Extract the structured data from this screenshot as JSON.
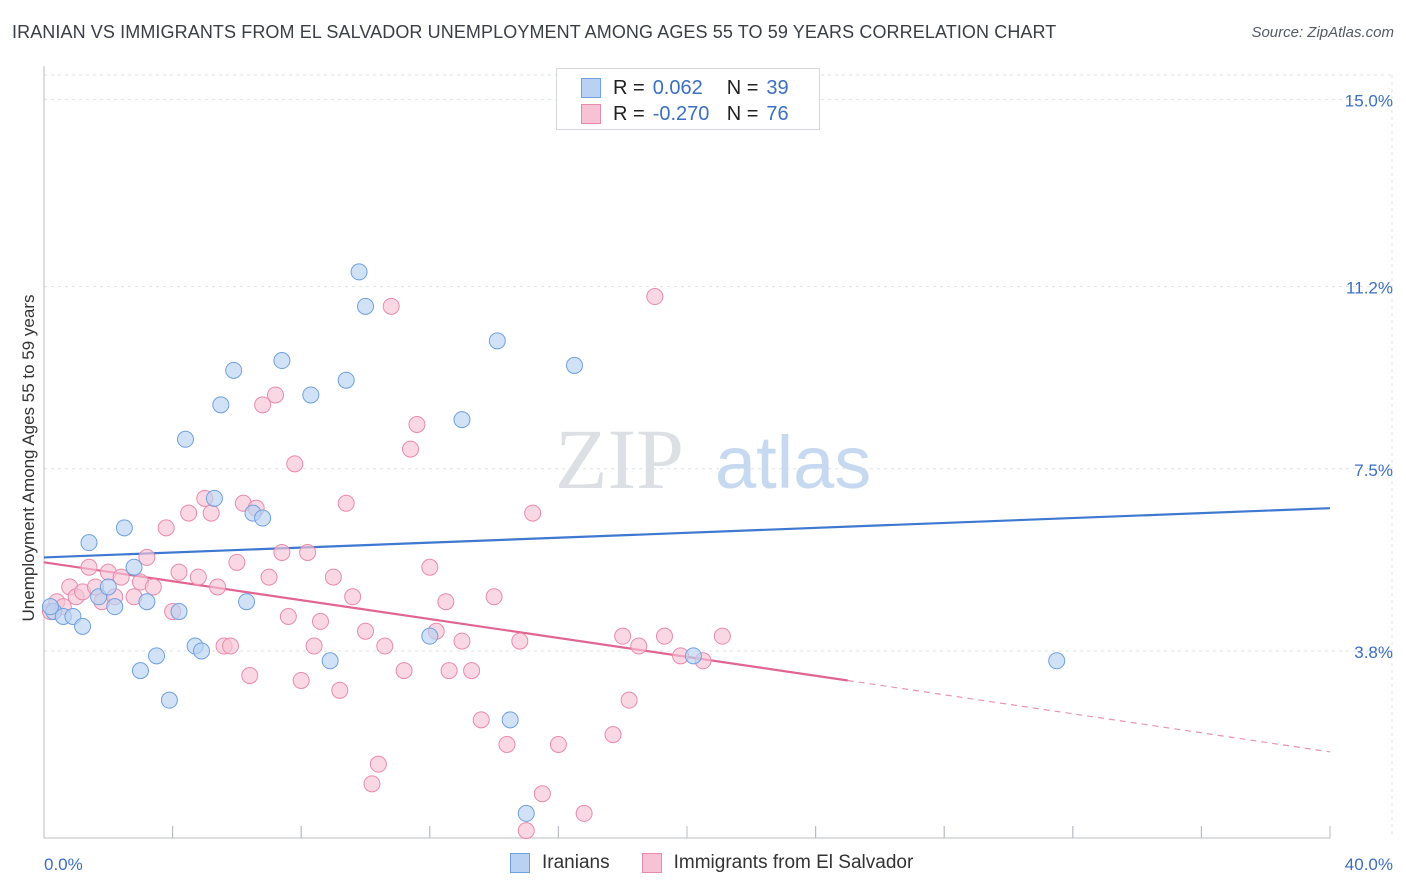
{
  "title": "IRANIAN VS IMMIGRANTS FROM EL SALVADOR UNEMPLOYMENT AMONG AGES 55 TO 59 YEARS CORRELATION CHART",
  "source": "Source: ZipAtlas.com",
  "watermark": {
    "zip": "ZIP",
    "atlas": "atlas"
  },
  "legend": {
    "rows": [
      {
        "r_label": "R =",
        "r_value": "0.062",
        "n_label": "N =",
        "n_value": "39",
        "color": "#6fa0e0",
        "fill": "#b9d2f3"
      },
      {
        "r_label": "R =",
        "r_value": "-0.270",
        "n_label": "N =",
        "n_value": "76",
        "color": "#ea8aab",
        "fill": "#f7c3d4"
      }
    ]
  },
  "bottom_legend": {
    "series1": "Iranians",
    "series2": "Immigrants from El Salvador"
  },
  "chart_data": {
    "type": "scatter",
    "title": "IRANIAN VS IMMIGRANTS FROM EL SALVADOR UNEMPLOYMENT AMONG AGES 55 TO 59 YEARS CORRELATION CHART",
    "xlabel": "",
    "ylabel": "Unemployment Among Ages 55 to 59 years",
    "xlim": [
      0,
      40
    ],
    "ylim": [
      0,
      15.5
    ],
    "x_tick_labels": [
      "0.0%",
      "40.0%"
    ],
    "y_ticks": [
      3.8,
      7.5,
      11.2,
      15.0
    ],
    "y_tick_labels": [
      "3.8%",
      "7.5%",
      "11.2%",
      "15.0%"
    ],
    "series": [
      {
        "name": "Iranians",
        "color": "#3e78d0",
        "fill": "#b9d2f3",
        "stroke": "#6fa0e0",
        "trend": {
          "x0": 0,
          "y0": 5.7,
          "x1": 40,
          "y1": 6.7
        },
        "points": [
          [
            0.3,
            4.6
          ],
          [
            0.6,
            4.5
          ],
          [
            0.9,
            4.5
          ],
          [
            1.2,
            4.3
          ],
          [
            1.4,
            6.0
          ],
          [
            1.7,
            4.9
          ],
          [
            2.2,
            4.7
          ],
          [
            2.5,
            6.3
          ],
          [
            2.8,
            5.5
          ],
          [
            3.0,
            3.4
          ],
          [
            3.2,
            4.8
          ],
          [
            3.5,
            3.7
          ],
          [
            3.9,
            2.8
          ],
          [
            4.2,
            4.6
          ],
          [
            4.7,
            3.9
          ],
          [
            4.9,
            3.8
          ],
          [
            4.4,
            8.1
          ],
          [
            5.3,
            6.9
          ],
          [
            5.5,
            8.8
          ],
          [
            5.9,
            9.5
          ],
          [
            6.5,
            6.6
          ],
          [
            6.8,
            6.5
          ],
          [
            6.3,
            4.8
          ],
          [
            7.4,
            9.7
          ],
          [
            8.3,
            9.0
          ],
          [
            8.9,
            3.6
          ],
          [
            9.4,
            9.3
          ],
          [
            9.8,
            11.5
          ],
          [
            10.0,
            10.8
          ],
          [
            12.0,
            4.1
          ],
          [
            13.0,
            8.5
          ],
          [
            14.1,
            10.1
          ],
          [
            14.5,
            2.4
          ],
          [
            15.0,
            0.5
          ],
          [
            16.5,
            9.6
          ],
          [
            20.2,
            3.7
          ],
          [
            31.5,
            3.6
          ],
          [
            0.2,
            4.7
          ],
          [
            2.0,
            5.1
          ]
        ]
      },
      {
        "name": "Immigrants from El Salvador",
        "color": "#e06592",
        "fill": "#f7c3d4",
        "stroke": "#ea8aab",
        "trend": {
          "x0": 0,
          "y0": 5.6,
          "x1": 25,
          "y1": 3.2,
          "dash_to_x": 40,
          "dash_to_y": 1.75
        },
        "points": [
          [
            0.2,
            4.6
          ],
          [
            0.4,
            4.8
          ],
          [
            0.6,
            4.7
          ],
          [
            0.8,
            5.1
          ],
          [
            1.0,
            4.9
          ],
          [
            1.2,
            5.0
          ],
          [
            1.4,
            5.5
          ],
          [
            1.6,
            5.1
          ],
          [
            1.8,
            4.8
          ],
          [
            2.0,
            5.4
          ],
          [
            2.2,
            4.9
          ],
          [
            2.4,
            5.3
          ],
          [
            2.8,
            4.9
          ],
          [
            3.0,
            5.2
          ],
          [
            3.2,
            5.7
          ],
          [
            3.4,
            5.1
          ],
          [
            3.8,
            6.3
          ],
          [
            4.0,
            4.6
          ],
          [
            4.2,
            5.4
          ],
          [
            4.5,
            6.6
          ],
          [
            4.8,
            5.3
          ],
          [
            5.0,
            6.9
          ],
          [
            5.2,
            6.6
          ],
          [
            5.4,
            5.1
          ],
          [
            5.6,
            3.9
          ],
          [
            5.8,
            3.9
          ],
          [
            6.0,
            5.6
          ],
          [
            6.2,
            6.8
          ],
          [
            6.4,
            3.3
          ],
          [
            6.6,
            6.7
          ],
          [
            6.8,
            8.8
          ],
          [
            7.2,
            9.0
          ],
          [
            7.0,
            5.3
          ],
          [
            7.4,
            5.8
          ],
          [
            7.6,
            4.5
          ],
          [
            7.8,
            7.6
          ],
          [
            8.0,
            3.2
          ],
          [
            8.2,
            5.8
          ],
          [
            8.4,
            3.9
          ],
          [
            8.6,
            4.4
          ],
          [
            9.0,
            5.3
          ],
          [
            9.2,
            3.0
          ],
          [
            9.4,
            6.8
          ],
          [
            9.6,
            4.9
          ],
          [
            10.0,
            4.2
          ],
          [
            10.2,
            1.1
          ],
          [
            10.4,
            1.5
          ],
          [
            10.6,
            3.9
          ],
          [
            10.8,
            10.8
          ],
          [
            11.2,
            3.4
          ],
          [
            11.4,
            7.9
          ],
          [
            11.6,
            8.4
          ],
          [
            12.0,
            5.5
          ],
          [
            12.2,
            4.2
          ],
          [
            12.5,
            4.8
          ],
          [
            12.6,
            3.4
          ],
          [
            13.0,
            4.0
          ],
          [
            13.3,
            3.4
          ],
          [
            13.6,
            2.4
          ],
          [
            14.0,
            4.9
          ],
          [
            14.4,
            1.9
          ],
          [
            14.8,
            4.0
          ],
          [
            15.2,
            6.6
          ],
          [
            15.5,
            0.9
          ],
          [
            16.0,
            1.9
          ],
          [
            16.8,
            0.5
          ],
          [
            17.7,
            2.1
          ],
          [
            18.2,
            2.8
          ],
          [
            18.5,
            3.9
          ],
          [
            18.0,
            4.1
          ],
          [
            19.3,
            4.1
          ],
          [
            19.8,
            3.7
          ],
          [
            20.5,
            3.6
          ],
          [
            21.1,
            4.1
          ],
          [
            19.0,
            11.0
          ],
          [
            15.0,
            0.15
          ]
        ]
      }
    ]
  }
}
